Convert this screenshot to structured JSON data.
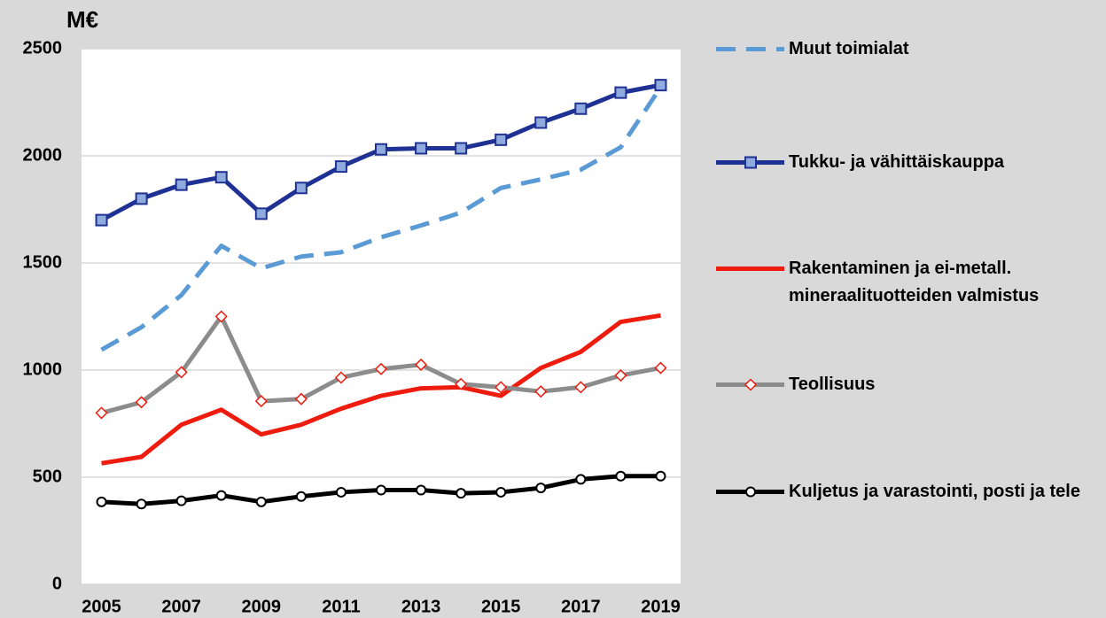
{
  "chart_data": {
    "type": "line",
    "ylabel": "M€",
    "x": [
      2005,
      2006,
      2007,
      2008,
      2009,
      2010,
      2011,
      2012,
      2013,
      2014,
      2015,
      2016,
      2017,
      2018,
      2019
    ],
    "xlim": [
      2004.5,
      2019.5
    ],
    "xticks": [
      2005,
      2007,
      2009,
      2011,
      2013,
      2015,
      2017,
      2019
    ],
    "ylim": [
      0,
      2500
    ],
    "yticks": [
      0,
      500,
      1000,
      1500,
      2000,
      2500
    ],
    "grid": true,
    "legend": "right",
    "series": [
      {
        "name": "Muut toimialat",
        "color": "#5b9bd5",
        "dash": true,
        "marker": "none",
        "values": [
          1095,
          1200,
          1350,
          1580,
          1475,
          1530,
          1550,
          1620,
          1675,
          1735,
          1850,
          1890,
          1935,
          2040,
          2320
        ]
      },
      {
        "name": "Tukku- ja vähittäiskauppa",
        "color": "#1f3294",
        "dash": false,
        "marker": "square",
        "values": [
          1700,
          1800,
          1865,
          1900,
          1730,
          1850,
          1950,
          2030,
          2035,
          2035,
          2075,
          2155,
          2220,
          2295,
          2330
        ]
      },
      {
        "name": "Rakentaminen ja ei-metall. mineraalituotteiden valmistus",
        "color": "#ee1c0e",
        "dash": false,
        "marker": "none",
        "values": [
          565,
          595,
          745,
          815,
          700,
          745,
          820,
          880,
          915,
          920,
          880,
          1010,
          1085,
          1225,
          1255
        ]
      },
      {
        "name": "Teollisuus",
        "color": "#8c8c8c",
        "dash": false,
        "marker": "diamond",
        "values": [
          800,
          850,
          990,
          1250,
          855,
          865,
          965,
          1005,
          1025,
          935,
          920,
          900,
          920,
          975,
          1010
        ]
      },
      {
        "name": "Kuljetus ja varastointi, posti ja tele",
        "color": "#000000",
        "dash": false,
        "marker": "circle",
        "values": [
          385,
          375,
          390,
          415,
          385,
          410,
          430,
          440,
          440,
          425,
          430,
          450,
          490,
          505,
          505
        ]
      }
    ]
  }
}
